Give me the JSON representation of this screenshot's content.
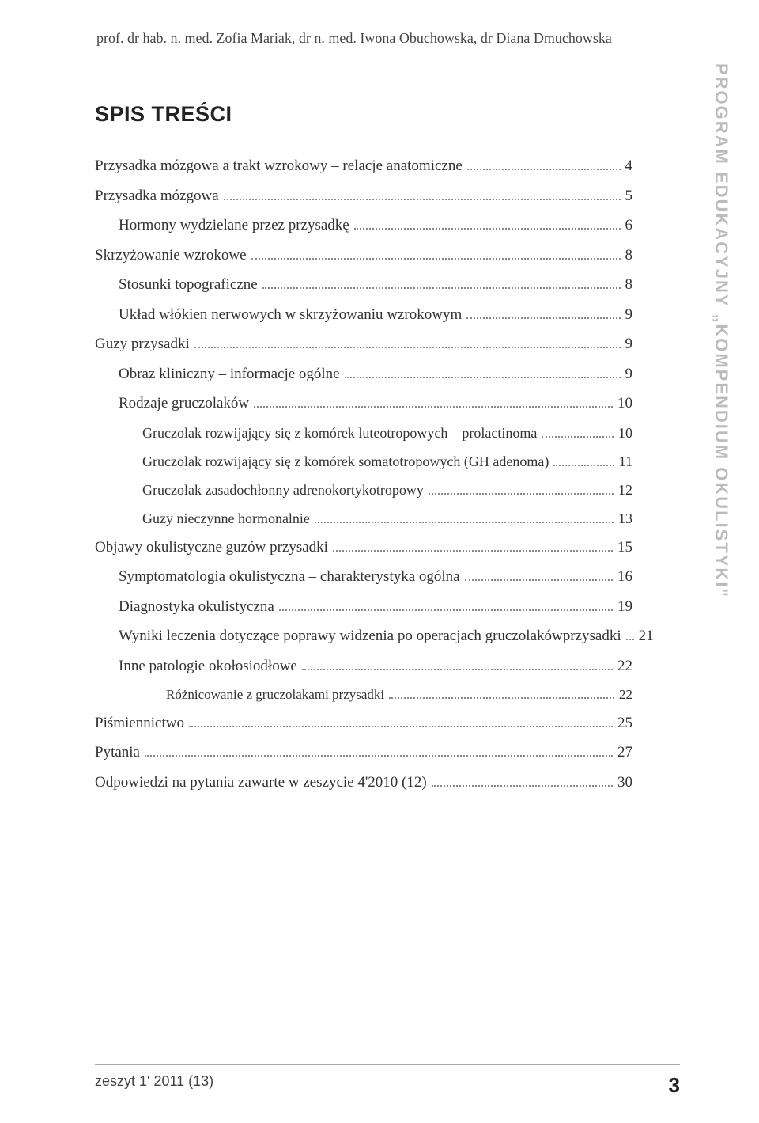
{
  "authors": "prof. dr hab. n. med. Zofia Mariak, dr n. med. Iwona Obuchowska, dr Diana Dmuchowska",
  "toc_title": "SPIS TREŚCI",
  "side_label_plain": "PROGRAM EDUKACYJNY ",
  "side_label_quoted": "„KOMPENDIUM OKULISTYKI\"",
  "footer_issue": "zeszyt 1' 2011 (13)",
  "footer_page": "3",
  "toc": [
    {
      "level": 1,
      "label": "Przysadka mózgowa a trakt wzrokowy – relacje anatomiczne",
      "page": "4"
    },
    {
      "level": 1,
      "label": "Przysadka mózgowa",
      "page": "5"
    },
    {
      "level": 2,
      "label": "Hormony wydzielane przez przysadkę",
      "page": "6"
    },
    {
      "level": 1,
      "label": "Skrzyżowanie wzrokowe",
      "page": "8"
    },
    {
      "level": 2,
      "label": "Stosunki topograficzne",
      "page": "8"
    },
    {
      "level": 2,
      "label": "Układ włókien nerwowych w skrzyżowaniu wzrokowym",
      "page": "9"
    },
    {
      "level": 1,
      "label": "Guzy przysadki",
      "page": "9"
    },
    {
      "level": 2,
      "label": "Obraz kliniczny – informacje ogólne",
      "page": "9"
    },
    {
      "level": 2,
      "label": "Rodzaje gruczolaków",
      "page": "10"
    },
    {
      "level": 3,
      "label": "Gruczolak rozwijający się z komórek luteotropowych – prolactinoma",
      "page": "10"
    },
    {
      "level": 3,
      "label": "Gruczolak rozwijający się z komórek somatotropowych (GH adenoma)",
      "page": "11"
    },
    {
      "level": 3,
      "label": "Gruczolak zasadochłonny adrenokortykotropowy",
      "page": "12"
    },
    {
      "level": 3,
      "label": "Guzy nieczynne hormonalnie",
      "page": "13"
    },
    {
      "level": 1,
      "label": "Objawy okulistyczne guzów przysadki",
      "page": "15"
    },
    {
      "level": 2,
      "label": "Symptomatologia okulistyczna – charakterystyka ogólna",
      "page": "16"
    },
    {
      "level": 2,
      "label": "Diagnostyka okulistyczna",
      "page": "19"
    },
    {
      "level": 2,
      "line1": "Wyniki leczenia dotyczące poprawy widzenia po operacjach gruczolaków",
      "line2": "przysadki",
      "page": "21",
      "multiline": true
    },
    {
      "level": 2,
      "label": "Inne patologie okołosiodłowe",
      "page": "22"
    },
    {
      "level": 4,
      "label": "Różnicowanie z gruczolakami przysadki",
      "page": "22"
    },
    {
      "level": 1,
      "label": "Piśmiennictwo",
      "page": "25"
    },
    {
      "level": 1,
      "label": "Pytania",
      "page": "27"
    },
    {
      "level": 1,
      "label": "Odpowiedzi na pytania zawarte w zeszycie 4'2010 (12)",
      "page": "30"
    }
  ]
}
